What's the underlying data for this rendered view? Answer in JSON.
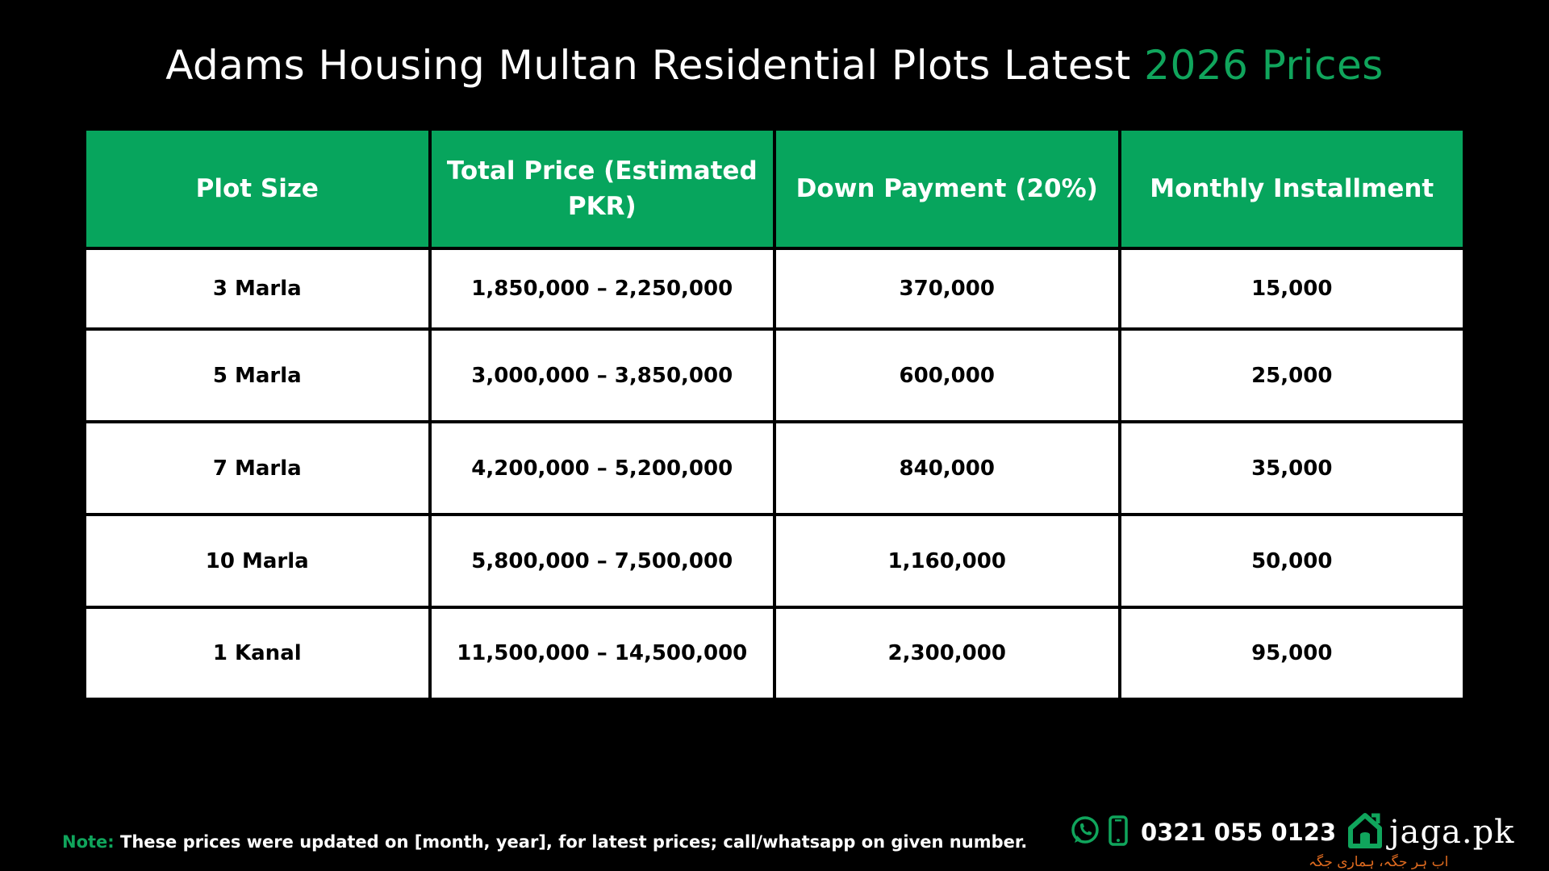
{
  "title": {
    "main": "Adams Housing Multan Residential Plots Latest ",
    "accent": "2026 Prices"
  },
  "table": {
    "headers": [
      "Plot Size",
      "Total Price (Estimated PKR)",
      "Down Payment (20%)",
      "Monthly Installment"
    ],
    "rows": [
      [
        "3 Marla",
        "1,850,000 – 2,250,000",
        "370,000",
        "15,000"
      ],
      [
        "5 Marla",
        "3,000,000 – 3,850,000",
        "600,000",
        "25,000"
      ],
      [
        "7 Marla",
        "4,200,000 – 5,200,000",
        "840,000",
        "35,000"
      ],
      [
        "10 Marla",
        "5,800,000 – 7,500,000",
        "1,160,000",
        "50,000"
      ],
      [
        "1 Kanal",
        "11,500,000 – 14,500,000",
        "2,300,000",
        "95,000"
      ]
    ]
  },
  "note": {
    "label": "Note:",
    "text": " These prices were updated on [month, year], for latest prices; call/whatsapp on given number."
  },
  "contact": {
    "phone": "0321 055 0123",
    "whatsapp_icon": "whatsapp-icon",
    "phone_icon": "mobile-phone-icon"
  },
  "brand": {
    "name": "jaga.pk",
    "logo_icon": "house-logo-icon",
    "tagline": "اب ہر جگہ، ہماری جگہ"
  },
  "colors": {
    "accent": "#10a55c",
    "header_bg": "#07a55d",
    "background": "#000000",
    "cell_bg": "#ffffff",
    "tagline": "#e06b1f"
  }
}
